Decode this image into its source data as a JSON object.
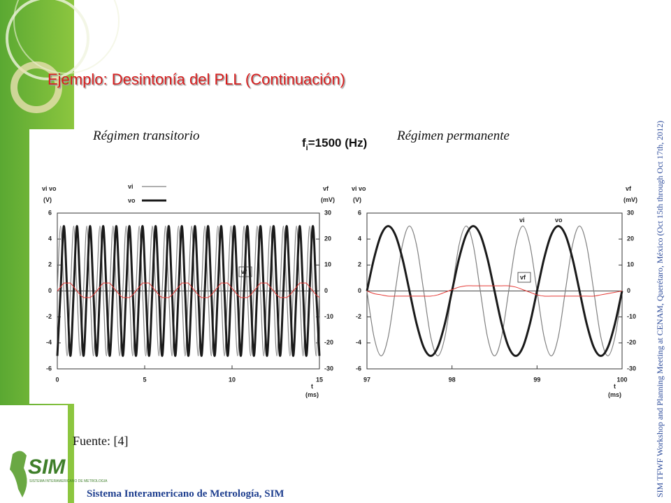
{
  "slide": {
    "title": "Ejemplo: Desintonía del PLL (Continuación)",
    "freq_label": {
      "base": "f",
      "sub": "i",
      "rest": "=1500 (Hz)"
    },
    "source": "Fuente: [4]",
    "footer": "Sistema Interamericano de Metrología, SIM",
    "side_note": "SIM TFWF Workshop and Planning Meeting at CENAM, Querétaro, México (Oct 15th through Oct 17th, 2012)",
    "logo": {
      "name": "SIM",
      "sub": "SISTEMA INTERAMERICANO DE METROLOGIA"
    }
  },
  "chart_data": [
    {
      "type": "line",
      "title": "Régimen transitorio",
      "x_label": "t",
      "x_unit": "(ms)",
      "y_label": "vi vo",
      "y_unit": "(V)",
      "y2_label": "vf",
      "y2_unit": "(mV)",
      "legend": true,
      "annotations": [
        "vf"
      ],
      "xlim": [
        0,
        15
      ],
      "xticks": [
        0,
        5,
        10,
        15
      ],
      "ylim": [
        -6,
        6
      ],
      "yticks": [
        -6,
        -4,
        -2,
        0,
        2,
        4,
        6
      ],
      "y2lim": [
        -30,
        30
      ],
      "y2ticks": [
        -30,
        -20,
        -10,
        0,
        10,
        20,
        30
      ],
      "x": [
        0,
        0.1875,
        0.375,
        0.5625,
        0.75,
        0.9375,
        1.125,
        1.3125,
        1.5,
        1.6875,
        1.875,
        2.0625,
        2.25,
        2.4375,
        2.625,
        2.8125,
        3,
        3.1875,
        3.375,
        3.5625,
        3.75,
        3.9375,
        4.125,
        4.3125,
        4.5,
        4.6875,
        4.875,
        5.0625,
        5.25,
        5.4375,
        5.625,
        5.8125,
        6,
        6.1875,
        6.375,
        6.5625,
        6.75,
        6.9375,
        7.125,
        7.3125,
        7.5,
        7.6875,
        7.875,
        8.0625,
        8.25,
        8.4375,
        8.625,
        8.8125,
        9,
        9.1875,
        9.375,
        9.5625,
        9.75,
        9.9375,
        10.125,
        10.3125,
        10.5,
        10.6875,
        10.875,
        11.0625,
        11.25,
        11.4375,
        11.625,
        11.8125,
        12,
        12.1875,
        12.375,
        12.5625,
        12.75,
        12.9375,
        13.125,
        13.3125,
        13.5,
        13.6875,
        13.875,
        14.0625,
        14.25,
        14.4375,
        14.625,
        14.8125,
        15
      ],
      "series": [
        {
          "name": "vi",
          "color": "#808080",
          "width": 1.2,
          "axis": "y",
          "values": [
            0,
            5,
            0,
            -5,
            0,
            5,
            0,
            -5,
            0,
            5,
            0,
            -5,
            0,
            5,
            0,
            -5,
            0,
            5,
            0,
            -5,
            0,
            5,
            0,
            -5,
            0,
            5,
            0,
            -5,
            0,
            5,
            0,
            -5,
            0,
            5,
            0,
            -5,
            0,
            5,
            0,
            -5,
            0,
            5,
            0,
            -5,
            0,
            5,
            0,
            -5,
            0,
            5,
            0,
            -5,
            0,
            5,
            0,
            -5,
            0,
            5,
            0,
            -5,
            0,
            5,
            0,
            -5,
            0,
            5,
            0,
            -5,
            0,
            5,
            0,
            -5,
            0,
            5,
            0,
            -5,
            0,
            5,
            0,
            -5,
            0
          ]
        },
        {
          "name": "vo",
          "color": "#1a1a1a",
          "width": 3,
          "axis": "y",
          "values": [
            -5,
            0,
            5,
            0,
            -5,
            0,
            5,
            0,
            -5,
            0,
            5,
            0,
            -5,
            0,
            5,
            0,
            -5,
            0,
            5,
            0,
            -5,
            0,
            5,
            0,
            -5,
            0,
            5,
            0,
            -5,
            0,
            5,
            0,
            -5,
            0,
            5,
            0,
            -5,
            0,
            5,
            0,
            -5,
            0,
            5,
            0,
            -5,
            0,
            5,
            0,
            -5,
            0,
            5,
            0,
            -5,
            0,
            5,
            0,
            -5,
            0,
            5,
            0,
            -5,
            0,
            5,
            0,
            -5,
            0,
            5,
            0,
            -5,
            0,
            5,
            0,
            -5,
            0,
            5,
            0,
            -5,
            0,
            5,
            0,
            -5
          ]
        },
        {
          "name": "vf",
          "color": "#e53935",
          "width": 1,
          "axis": "y2",
          "values": [
            0,
            1.5,
            3,
            3,
            3,
            1.5,
            0,
            -1.5,
            -2.5,
            -2.5,
            -2.5,
            -1.5,
            0,
            1.5,
            3,
            3,
            3,
            1.5,
            0,
            -1.5,
            -2.5,
            -2.5,
            -2.5,
            -1.5,
            0,
            1.5,
            3,
            3,
            3,
            1.5,
            0,
            -1.5,
            -2.5,
            -2.5,
            -2.5,
            -1.5,
            0,
            1.5,
            3,
            3,
            3,
            1.5,
            0,
            -1.5,
            -2.5,
            -2.5,
            -2.5,
            -1.5,
            0,
            1.5,
            3,
            3,
            3,
            1.5,
            0,
            -1.5,
            -2.5,
            -2.5,
            -2.5,
            -1.5,
            0,
            1.5,
            3,
            3,
            3,
            1.5,
            0,
            -1.5,
            -2.5,
            -2.5,
            -2.5,
            -1.5,
            0,
            1.5,
            3,
            3,
            3,
            1.5,
            0,
            -1.5,
            -2.5
          ]
        }
      ]
    },
    {
      "type": "line",
      "title": "Régimen permanente",
      "x_label": "t",
      "x_unit": "(ms)",
      "y_label": "vi vo",
      "y_unit": "(V)",
      "y2_label": "vf",
      "y2_unit": "(mV)",
      "legend": false,
      "annotations": [
        "vi",
        "vo",
        "vf"
      ],
      "xlim": [
        97,
        100
      ],
      "xticks": [
        97,
        98,
        99,
        100
      ],
      "ylim": [
        -6,
        6
      ],
      "yticks": [
        -6,
        -4,
        -2,
        0,
        2,
        4,
        6
      ],
      "y2lim": [
        -30,
        30
      ],
      "y2ticks": [
        -30,
        -20,
        -10,
        0,
        10,
        20,
        30
      ],
      "x": [
        97,
        97.083,
        97.167,
        97.25,
        97.333,
        97.417,
        97.5,
        97.583,
        97.667,
        97.75,
        97.833,
        97.917,
        98,
        98.083,
        98.167,
        98.25,
        98.333,
        98.417,
        98.5,
        98.583,
        98.667,
        98.75,
        98.833,
        98.917,
        99,
        99.083,
        99.167,
        99.25,
        99.333,
        99.417,
        99.5,
        99.583,
        99.667,
        99.75,
        99.833,
        99.917,
        100
      ],
      "series": [
        {
          "name": "vi",
          "color": "#808080",
          "width": 1.2,
          "axis": "y",
          "values": [
            0,
            -3.54,
            -5,
            -3.54,
            0,
            3.54,
            5,
            3.54,
            0,
            -3.54,
            -5,
            -3.54,
            0,
            3.54,
            5,
            3.54,
            0,
            -3.54,
            -5,
            -3.54,
            0,
            3.54,
            5,
            3.54,
            0,
            -3.54,
            -5,
            -3.54,
            0,
            3.54,
            5,
            3.54,
            0,
            -3.54,
            -5,
            -3.54,
            0
          ]
        },
        {
          "name": "vo",
          "color": "#1a1a1a",
          "width": 3,
          "axis": "y",
          "values": [
            0,
            2.5,
            4.33,
            5,
            4.33,
            2.5,
            0,
            -2.5,
            -4.33,
            -5,
            -4.33,
            -2.5,
            0,
            2.5,
            4.33,
            5,
            4.33,
            2.5,
            0,
            -2.5,
            -4.33,
            -5,
            -4.33,
            -2.5,
            0,
            2.5,
            4.33,
            5,
            4.33,
            2.5,
            0,
            -2.5,
            -4.33,
            -5,
            -4.33,
            -2.5,
            0
          ]
        },
        {
          "name": "vf",
          "color": "#e53935",
          "width": 1,
          "axis": "y2",
          "values": [
            0,
            -1,
            -1.5,
            -2,
            -2,
            -2,
            -2,
            -2,
            -2,
            -2,
            -1.5,
            -0.5,
            0.5,
            1.5,
            2,
            2,
            2,
            2,
            2,
            2,
            2,
            1.5,
            0.5,
            -0.5,
            -1.5,
            -2,
            -2,
            -2,
            -2,
            -2,
            -2,
            -2,
            -2,
            -1.5,
            -1,
            -0.5,
            0
          ]
        }
      ]
    }
  ]
}
